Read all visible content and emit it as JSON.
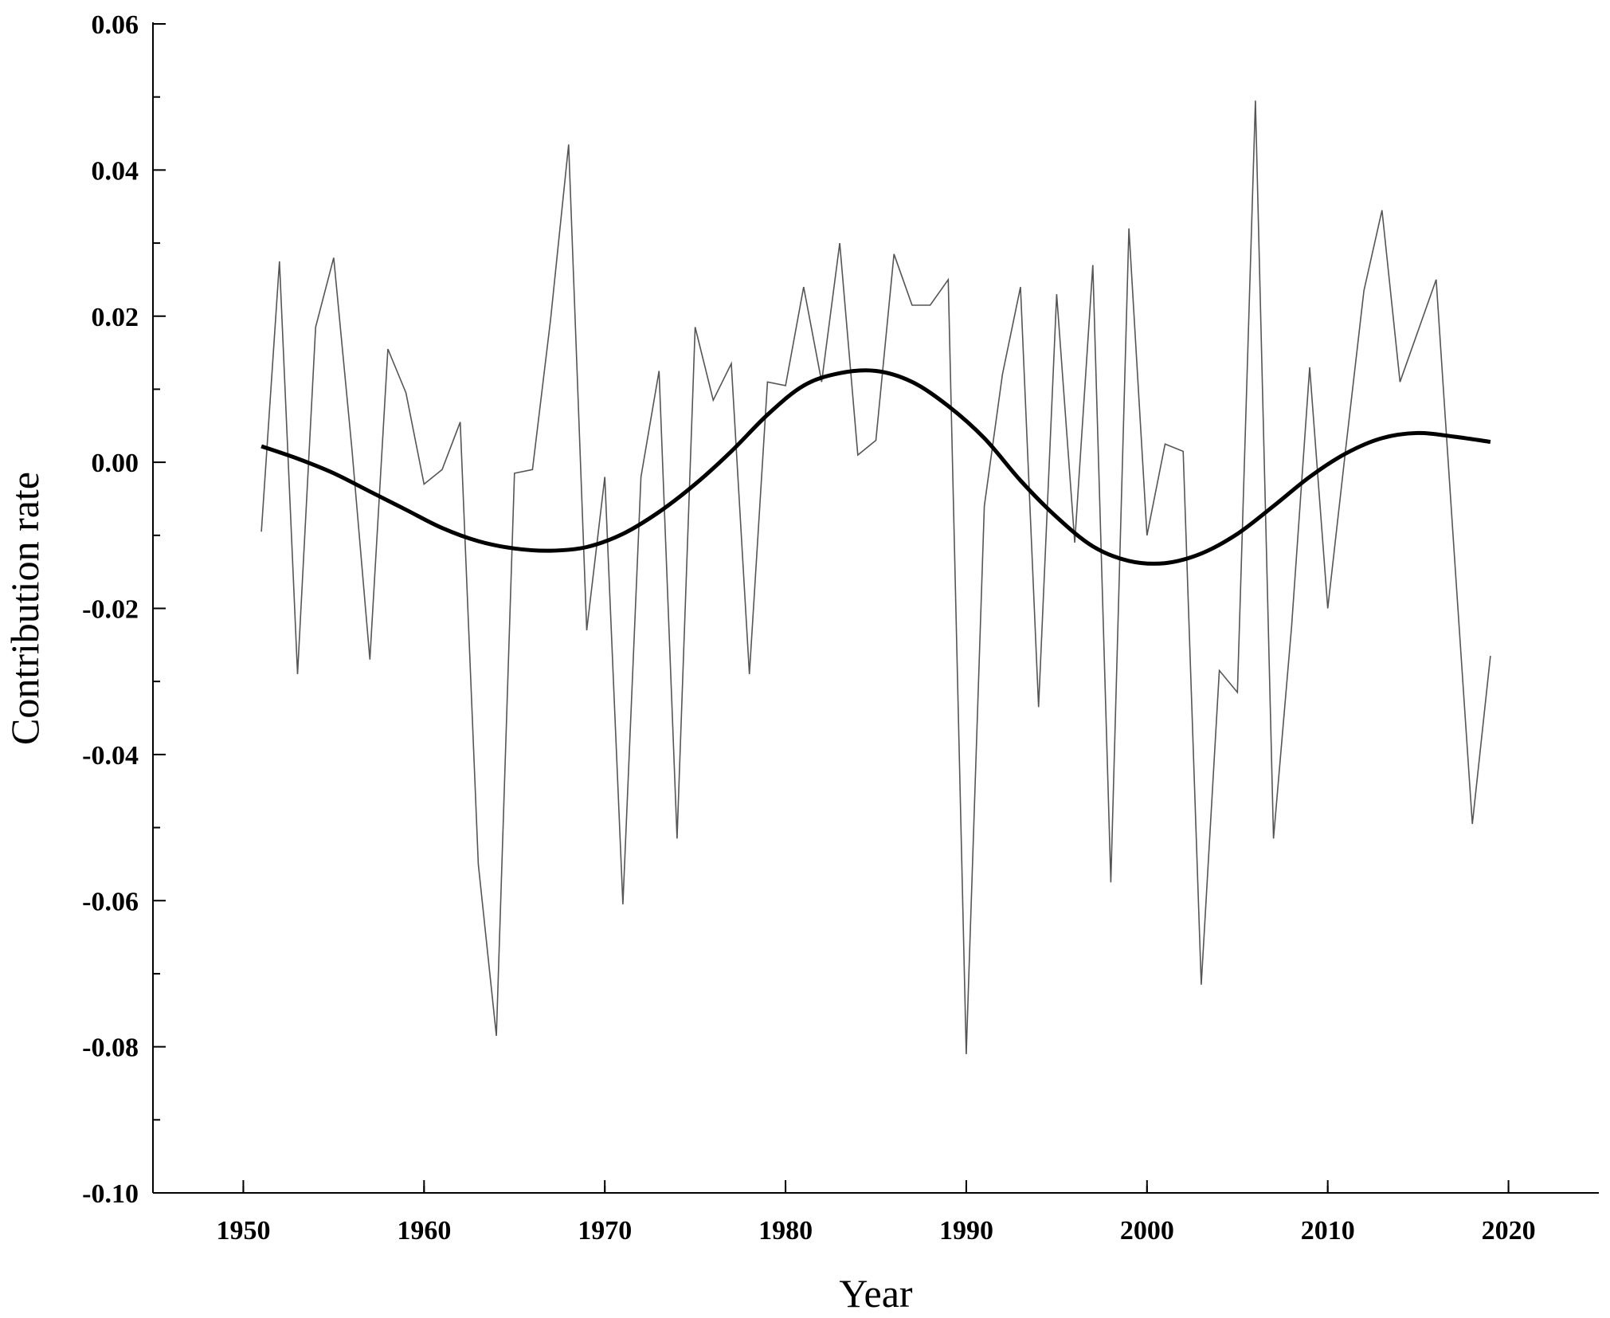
{
  "chart_data": {
    "type": "line",
    "title": "",
    "xlabel": "Year",
    "ylabel": "Contribution rate",
    "xlim": [
      1945,
      2025
    ],
    "ylim": [
      -0.1,
      0.06
    ],
    "x_ticks": [
      1950,
      1960,
      1970,
      1980,
      1990,
      2000,
      2010,
      2020
    ],
    "x_tick_labels": [
      "1950",
      "1960",
      "1970",
      "1980",
      "1990",
      "2000",
      "2010",
      "2020"
    ],
    "y_ticks": [
      0.06,
      0.04,
      0.02,
      0.0,
      -0.02,
      -0.04,
      -0.06,
      -0.08,
      -0.1
    ],
    "y_tick_labels": [
      "0.06",
      "0.04",
      "0.02",
      "0.00",
      "-0.02",
      "-0.04",
      "-0.06",
      "-0.08",
      "-0.10"
    ],
    "grid": false,
    "legend": "none",
    "series": [
      {
        "style": "thin-gray",
        "color": "#555555",
        "x": [
          1951,
          1952,
          1953,
          1954,
          1955,
          1956,
          1957,
          1958,
          1959,
          1960,
          1961,
          1962,
          1963,
          1964,
          1965,
          1966,
          1967,
          1968,
          1969,
          1970,
          1971,
          1972,
          1973,
          1974,
          1975,
          1976,
          1977,
          1978,
          1979,
          1980,
          1981,
          1982,
          1983,
          1984,
          1985,
          1986,
          1987,
          1988,
          1989,
          1990,
          1991,
          1992,
          1993,
          1994,
          1995,
          1996,
          1997,
          1998,
          1999,
          2000,
          2001,
          2002,
          2003,
          2004,
          2005,
          2006,
          2007,
          2008,
          2009,
          2010,
          2011,
          2012,
          2013,
          2014,
          2015,
          2016,
          2017,
          2018,
          2019
        ],
        "y": [
          -0.0095,
          0.0275,
          -0.029,
          0.0185,
          0.028,
          0.002,
          -0.027,
          0.0155,
          0.0095,
          -0.003,
          -0.001,
          0.0055,
          -0.055,
          -0.0785,
          -0.0015,
          -0.001,
          0.0195,
          0.0435,
          -0.023,
          -0.002,
          -0.0605,
          -0.002,
          0.0125,
          -0.0515,
          0.0185,
          0.0085,
          0.0135,
          -0.029,
          0.011,
          0.0105,
          0.024,
          0.011,
          0.03,
          0.001,
          0.003,
          0.0285,
          0.0215,
          0.0215,
          0.025,
          -0.081,
          -0.006,
          0.012,
          0.024,
          -0.0335,
          0.023,
          -0.011,
          0.027,
          -0.0575,
          0.032,
          -0.01,
          0.0025,
          0.0015,
          -0.0715,
          -0.0285,
          -0.0315,
          0.0495,
          -0.0515,
          -0.0225,
          0.013,
          -0.02,
          0.002,
          0.0235,
          0.0345,
          0.011,
          0.018,
          0.025,
          -0.0125,
          -0.0495,
          -0.0265
        ]
      },
      {
        "style": "thick-black",
        "color": "#000000",
        "x": [
          1951,
          1953,
          1955,
          1957,
          1959,
          1961,
          1963,
          1965,
          1967,
          1969,
          1971,
          1973,
          1975,
          1977,
          1979,
          1981,
          1983,
          1985,
          1987,
          1989,
          1991,
          1993,
          1995,
          1997,
          1999,
          2001,
          2003,
          2005,
          2007,
          2009,
          2011,
          2013,
          2015,
          2017,
          2019
        ],
        "y": [
          0.0022,
          0.0005,
          -0.0015,
          -0.004,
          -0.0065,
          -0.009,
          -0.0108,
          -0.0118,
          -0.0121,
          -0.0116,
          -0.0098,
          -0.0068,
          -0.003,
          0.0015,
          0.0065,
          0.0105,
          0.0122,
          0.0125,
          0.011,
          0.0077,
          0.0033,
          -0.0025,
          -0.0075,
          -0.0115,
          -0.0135,
          -0.0138,
          -0.0125,
          -0.0098,
          -0.006,
          -0.002,
          0.0012,
          0.0033,
          0.004,
          0.0035,
          0.0028
        ]
      }
    ]
  }
}
